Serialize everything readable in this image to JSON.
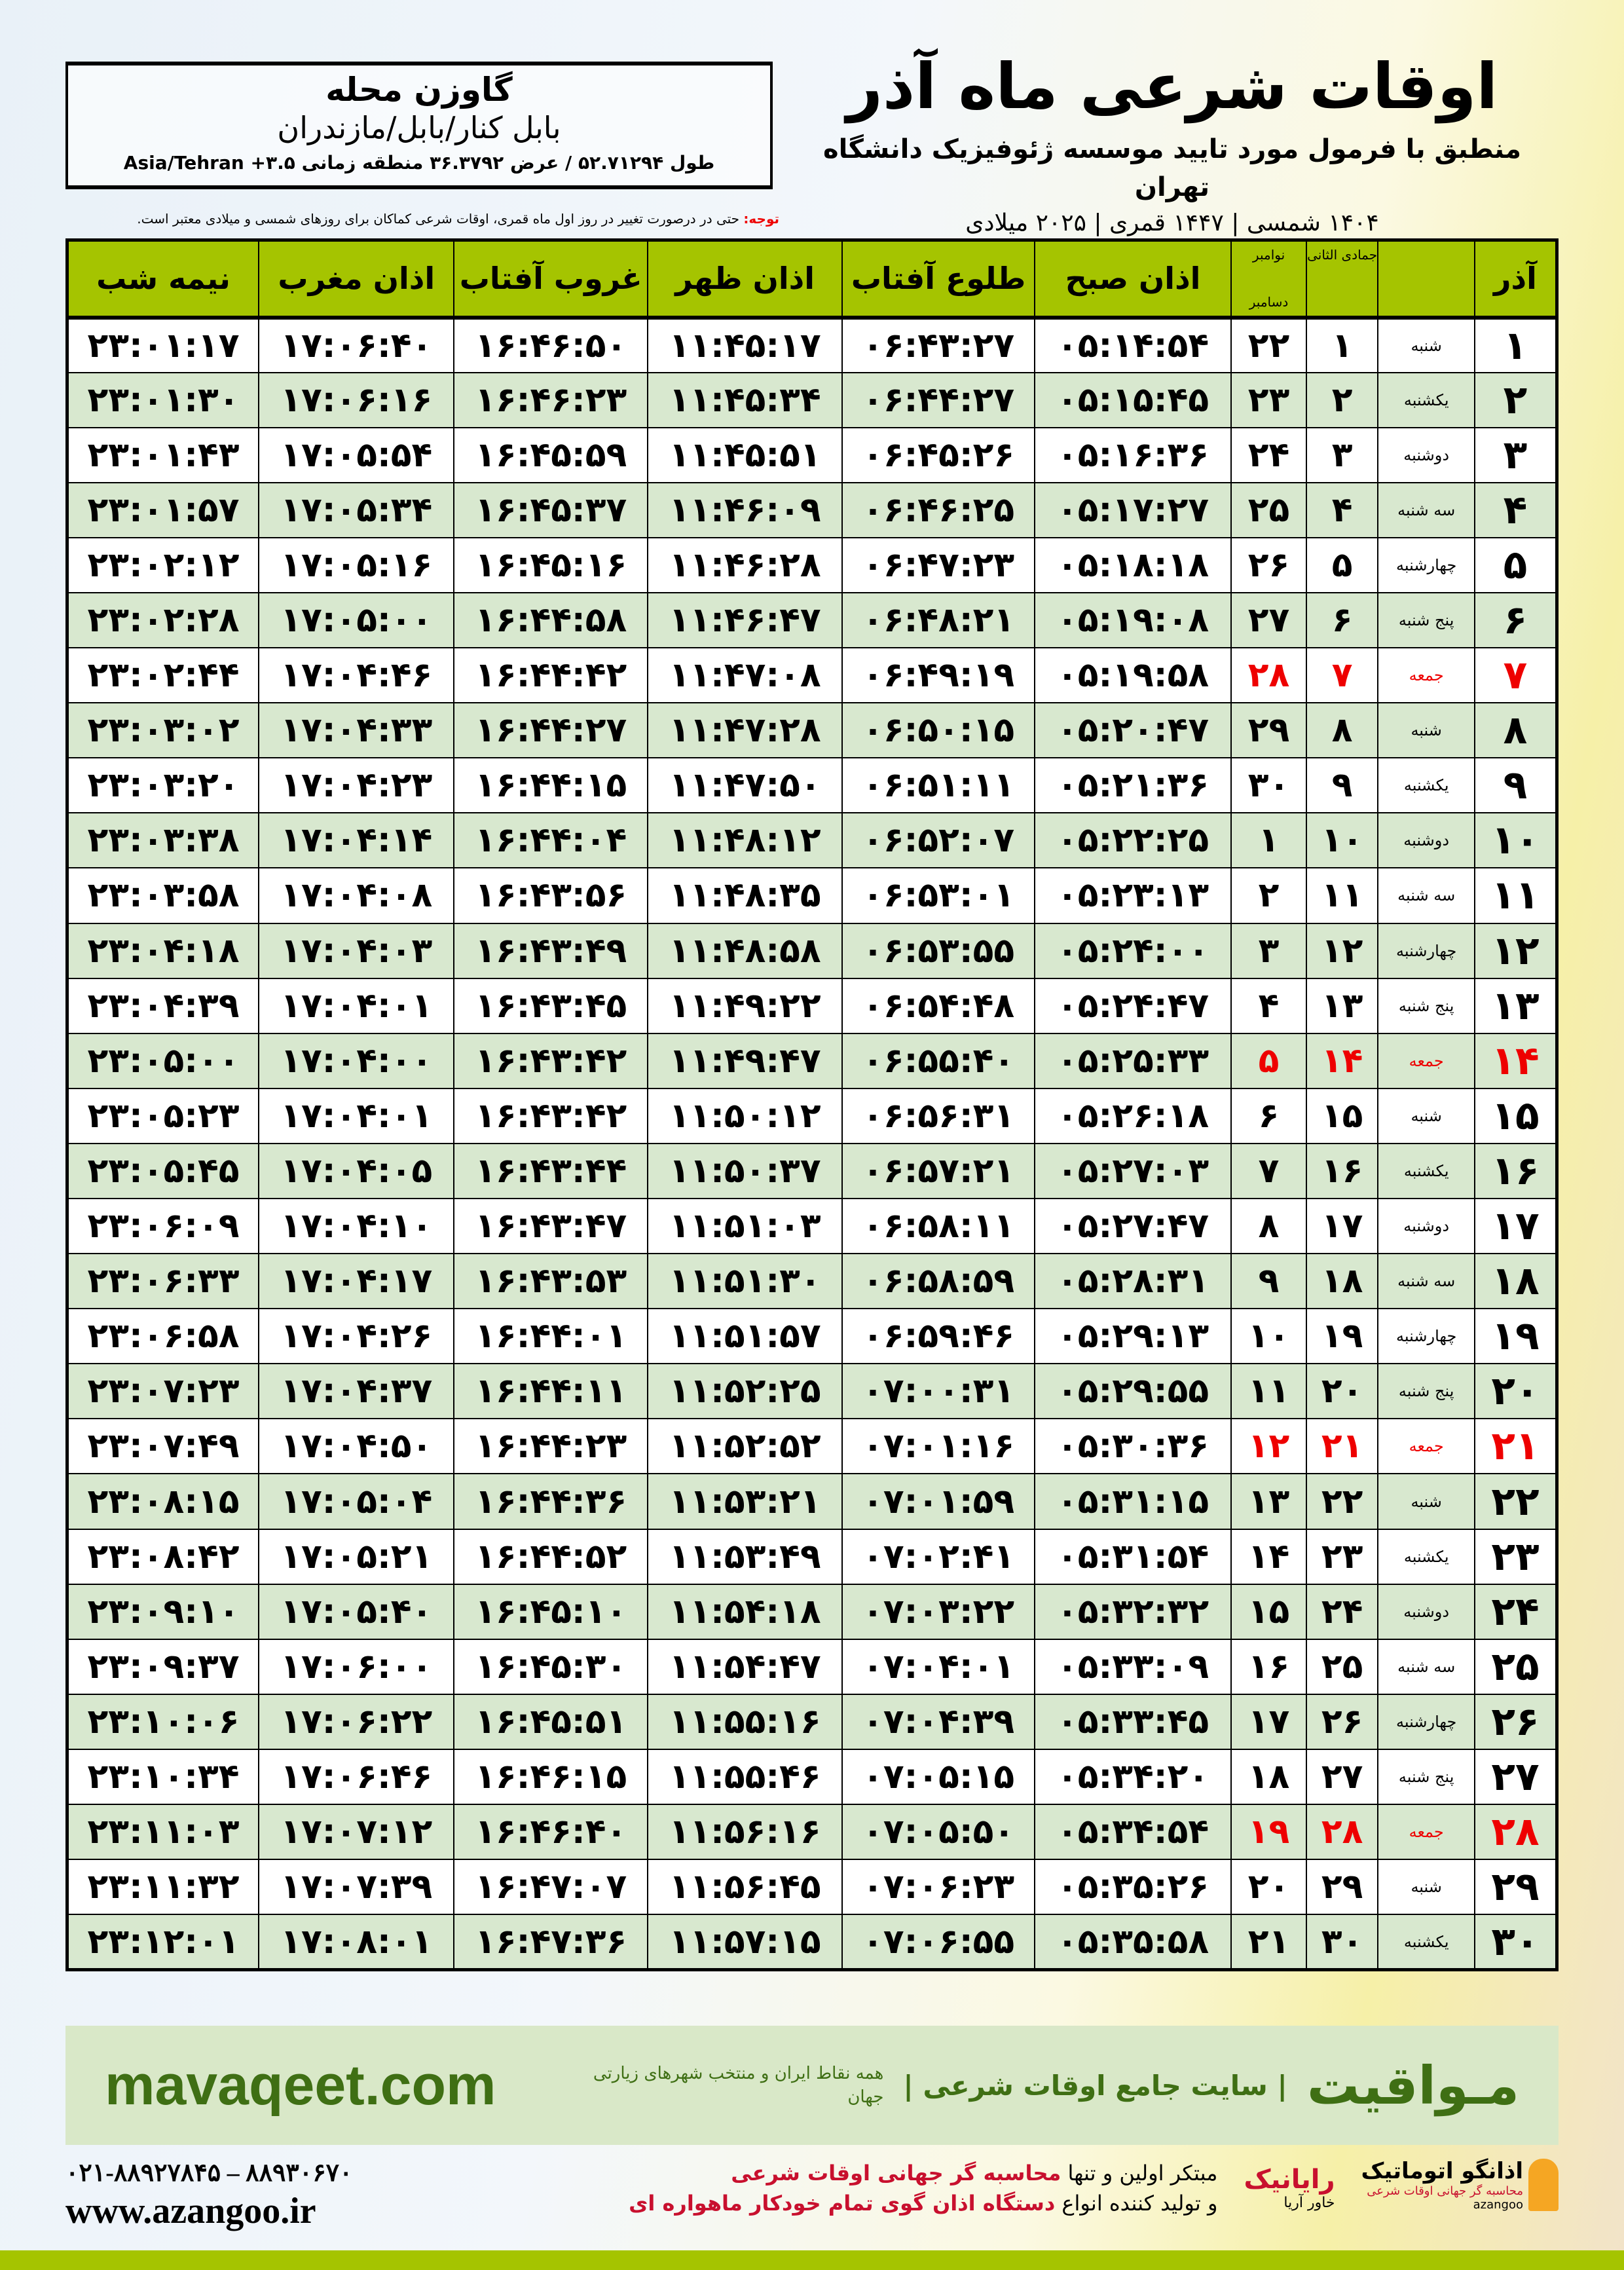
{
  "header": {
    "title": "اوقات شرعی ماه آذر",
    "subtitle": "منطبق با فرمول مورد تایید موسسه ژئوفیزیک دانشگاه تهران",
    "years": "۱۴۰۴ شمسی | ۱۴۴۷ قمری | ۲۰۲۵ میلادی"
  },
  "location": {
    "name": "گاوزن محله",
    "region": "بابل کنار/بابل/مازندران",
    "coords": "طول ۵۲.۷۱۲۹۴ / عرض ۳۶.۳۷۹۲ منطقه زمانی ۳.۵+ Asia/Tehran"
  },
  "note": {
    "label": "توجه:",
    "text": " حتی در درصورت تغییر در روز اول ماه قمری، اوقات شرعی کماکان برای روزهای شمسی و میلادی معتبر است."
  },
  "table": {
    "headers": {
      "azar": "آذر",
      "jumada": "جمادی الثانی",
      "nov": "نوامبر",
      "dec": "دسامبر",
      "sobh": "اذان صبح",
      "tolu": "طلوع آفتاب",
      "zohr": "اذان ظهر",
      "ghorub": "غروب آفتاب",
      "maghreb": "اذان مغرب",
      "nimeh": "نیمه شب"
    },
    "highlight_color": "#e00000",
    "rows": [
      [
        "۱",
        "شنبه",
        "۱",
        "۲۲",
        "۰۵:۱۴:۵۴",
        "۰۶:۴۳:۲۷",
        "۱۱:۴۵:۱۷",
        "۱۶:۴۶:۵۰",
        "۱۷:۰۶:۴۰",
        "۲۳:۰۱:۱۷"
      ],
      [
        "۲",
        "یکشنبه",
        "۲",
        "۲۳",
        "۰۵:۱۵:۴۵",
        "۰۶:۴۴:۲۷",
        "۱۱:۴۵:۳۴",
        "۱۶:۴۶:۲۳",
        "۱۷:۰۶:۱۶",
        "۲۳:۰۱:۳۰"
      ],
      [
        "۳",
        "دوشنبه",
        "۳",
        "۲۴",
        "۰۵:۱۶:۳۶",
        "۰۶:۴۵:۲۶",
        "۱۱:۴۵:۵۱",
        "۱۶:۴۵:۵۹",
        "۱۷:۰۵:۵۴",
        "۲۳:۰۱:۴۳"
      ],
      [
        "۴",
        "سه شنبه",
        "۴",
        "۲۵",
        "۰۵:۱۷:۲۷",
        "۰۶:۴۶:۲۵",
        "۱۱:۴۶:۰۹",
        "۱۶:۴۵:۳۷",
        "۱۷:۰۵:۳۴",
        "۲۳:۰۱:۵۷"
      ],
      [
        "۵",
        "چهارشنبه",
        "۵",
        "۲۶",
        "۰۵:۱۸:۱۸",
        "۰۶:۴۷:۲۳",
        "۱۱:۴۶:۲۸",
        "۱۶:۴۵:۱۶",
        "۱۷:۰۵:۱۶",
        "۲۳:۰۲:۱۲"
      ],
      [
        "۶",
        "پنج شنبه",
        "۶",
        "۲۷",
        "۰۵:۱۹:۰۸",
        "۰۶:۴۸:۲۱",
        "۱۱:۴۶:۴۷",
        "۱۶:۴۴:۵۸",
        "۱۷:۰۵:۰۰",
        "۲۳:۰۲:۲۸"
      ],
      [
        "۷",
        "جمعه",
        "۷",
        "۲۸",
        "۰۵:۱۹:۵۸",
        "۰۶:۴۹:۱۹",
        "۱۱:۴۷:۰۸",
        "۱۶:۴۴:۴۲",
        "۱۷:۰۴:۴۶",
        "۲۳:۰۲:۴۴"
      ],
      [
        "۸",
        "شنبه",
        "۸",
        "۲۹",
        "۰۵:۲۰:۴۷",
        "۰۶:۵۰:۱۵",
        "۱۱:۴۷:۲۸",
        "۱۶:۴۴:۲۷",
        "۱۷:۰۴:۳۳",
        "۲۳:۰۳:۰۲"
      ],
      [
        "۹",
        "یکشنبه",
        "۹",
        "۳۰",
        "۰۵:۲۱:۳۶",
        "۰۶:۵۱:۱۱",
        "۱۱:۴۷:۵۰",
        "۱۶:۴۴:۱۵",
        "۱۷:۰۴:۲۳",
        "۲۳:۰۳:۲۰"
      ],
      [
        "۱۰",
        "دوشنبه",
        "۱۰",
        "۱",
        "۰۵:۲۲:۲۵",
        "۰۶:۵۲:۰۷",
        "۱۱:۴۸:۱۲",
        "۱۶:۴۴:۰۴",
        "۱۷:۰۴:۱۴",
        "۲۳:۰۳:۳۸"
      ],
      [
        "۱۱",
        "سه شنبه",
        "۱۱",
        "۲",
        "۰۵:۲۳:۱۳",
        "۰۶:۵۳:۰۱",
        "۱۱:۴۸:۳۵",
        "۱۶:۴۳:۵۶",
        "۱۷:۰۴:۰۸",
        "۲۳:۰۳:۵۸"
      ],
      [
        "۱۲",
        "چهارشنبه",
        "۱۲",
        "۳",
        "۰۵:۲۴:۰۰",
        "۰۶:۵۳:۵۵",
        "۱۱:۴۸:۵۸",
        "۱۶:۴۳:۴۹",
        "۱۷:۰۴:۰۳",
        "۲۳:۰۴:۱۸"
      ],
      [
        "۱۳",
        "پنج شنبه",
        "۱۳",
        "۴",
        "۰۵:۲۴:۴۷",
        "۰۶:۵۴:۴۸",
        "۱۱:۴۹:۲۲",
        "۱۶:۴۳:۴۵",
        "۱۷:۰۴:۰۱",
        "۲۳:۰۴:۳۹"
      ],
      [
        "۱۴",
        "جمعه",
        "۱۴",
        "۵",
        "۰۵:۲۵:۳۳",
        "۰۶:۵۵:۴۰",
        "۱۱:۴۹:۴۷",
        "۱۶:۴۳:۴۲",
        "۱۷:۰۴:۰۰",
        "۲۳:۰۵:۰۰"
      ],
      [
        "۱۵",
        "شنبه",
        "۱۵",
        "۶",
        "۰۵:۲۶:۱۸",
        "۰۶:۵۶:۳۱",
        "۱۱:۵۰:۱۲",
        "۱۶:۴۳:۴۲",
        "۱۷:۰۴:۰۱",
        "۲۳:۰۵:۲۳"
      ],
      [
        "۱۶",
        "یکشنبه",
        "۱۶",
        "۷",
        "۰۵:۲۷:۰۳",
        "۰۶:۵۷:۲۱",
        "۱۱:۵۰:۳۷",
        "۱۶:۴۳:۴۴",
        "۱۷:۰۴:۰۵",
        "۲۳:۰۵:۴۵"
      ],
      [
        "۱۷",
        "دوشنبه",
        "۱۷",
        "۸",
        "۰۵:۲۷:۴۷",
        "۰۶:۵۸:۱۱",
        "۱۱:۵۱:۰۳",
        "۱۶:۴۳:۴۷",
        "۱۷:۰۴:۱۰",
        "۲۳:۰۶:۰۹"
      ],
      [
        "۱۸",
        "سه شنبه",
        "۱۸",
        "۹",
        "۰۵:۲۸:۳۱",
        "۰۶:۵۸:۵۹",
        "۱۱:۵۱:۳۰",
        "۱۶:۴۳:۵۳",
        "۱۷:۰۴:۱۷",
        "۲۳:۰۶:۳۳"
      ],
      [
        "۱۹",
        "چهارشنبه",
        "۱۹",
        "۱۰",
        "۰۵:۲۹:۱۳",
        "۰۶:۵۹:۴۶",
        "۱۱:۵۱:۵۷",
        "۱۶:۴۴:۰۱",
        "۱۷:۰۴:۲۶",
        "۲۳:۰۶:۵۸"
      ],
      [
        "۲۰",
        "پنج شنبه",
        "۲۰",
        "۱۱",
        "۰۵:۲۹:۵۵",
        "۰۷:۰۰:۳۱",
        "۱۱:۵۲:۲۵",
        "۱۶:۴۴:۱۱",
        "۱۷:۰۴:۳۷",
        "۲۳:۰۷:۲۳"
      ],
      [
        "۲۱",
        "جمعه",
        "۲۱",
        "۱۲",
        "۰۵:۳۰:۳۶",
        "۰۷:۰۱:۱۶",
        "۱۱:۵۲:۵۲",
        "۱۶:۴۴:۲۳",
        "۱۷:۰۴:۵۰",
        "۲۳:۰۷:۴۹"
      ],
      [
        "۲۲",
        "شنبه",
        "۲۲",
        "۱۳",
        "۰۵:۳۱:۱۵",
        "۰۷:۰۱:۵۹",
        "۱۱:۵۳:۲۱",
        "۱۶:۴۴:۳۶",
        "۱۷:۰۵:۰۴",
        "۲۳:۰۸:۱۵"
      ],
      [
        "۲۳",
        "یکشنبه",
        "۲۳",
        "۱۴",
        "۰۵:۳۱:۵۴",
        "۰۷:۰۲:۴۱",
        "۱۱:۵۳:۴۹",
        "۱۶:۴۴:۵۲",
        "۱۷:۰۵:۲۱",
        "۲۳:۰۸:۴۲"
      ],
      [
        "۲۴",
        "دوشنبه",
        "۲۴",
        "۱۵",
        "۰۵:۳۲:۳۲",
        "۰۷:۰۳:۲۲",
        "۱۱:۵۴:۱۸",
        "۱۶:۴۵:۱۰",
        "۱۷:۰۵:۴۰",
        "۲۳:۰۹:۱۰"
      ],
      [
        "۲۵",
        "سه شنبه",
        "۲۵",
        "۱۶",
        "۰۵:۳۳:۰۹",
        "۰۷:۰۴:۰۱",
        "۱۱:۵۴:۴۷",
        "۱۶:۴۵:۳۰",
        "۱۷:۰۶:۰۰",
        "۲۳:۰۹:۳۷"
      ],
      [
        "۲۶",
        "چهارشنبه",
        "۲۶",
        "۱۷",
        "۰۵:۳۳:۴۵",
        "۰۷:۰۴:۳۹",
        "۱۱:۵۵:۱۶",
        "۱۶:۴۵:۵۱",
        "۱۷:۰۶:۲۲",
        "۲۳:۱۰:۰۶"
      ],
      [
        "۲۷",
        "پنج شنبه",
        "۲۷",
        "۱۸",
        "۰۵:۳۴:۲۰",
        "۰۷:۰۵:۱۵",
        "۱۱:۵۵:۴۶",
        "۱۶:۴۶:۱۵",
        "۱۷:۰۶:۴۶",
        "۲۳:۱۰:۳۴"
      ],
      [
        "۲۸",
        "جمعه",
        "۲۸",
        "۱۹",
        "۰۵:۳۴:۵۴",
        "۰۷:۰۵:۵۰",
        "۱۱:۵۶:۱۶",
        "۱۶:۴۶:۴۰",
        "۱۷:۰۷:۱۲",
        "۲۳:۱۱:۰۳"
      ],
      [
        "۲۹",
        "شنبه",
        "۲۹",
        "۲۰",
        "۰۵:۳۵:۲۶",
        "۰۷:۰۶:۲۳",
        "۱۱:۵۶:۴۵",
        "۱۶:۴۷:۰۷",
        "۱۷:۰۷:۳۹",
        "۲۳:۱۱:۳۲"
      ],
      [
        "۳۰",
        "یکشنبه",
        "۳۰",
        "۲۱",
        "۰۵:۳۵:۵۸",
        "۰۷:۰۶:۵۵",
        "۱۱:۵۷:۱۵",
        "۱۶:۴۷:۳۶",
        "۱۷:۰۸:۰۱",
        "۲۳:۱۲:۰۱"
      ]
    ]
  },
  "banner": {
    "brand": "مـواقیت",
    "tagline": "| سایت جامع اوقات شرعی |",
    "tagline2": "همه نقاط ایران و منتخب شهرهای زیارتی جهان",
    "url": "mavaqeet.com"
  },
  "footer": {
    "phones": "۰۲۱-۸۸۹۲۷۸۴۵ – ۸۸۹۳۰۶۷۰",
    "website": "www.azangoo.ir",
    "promo_1a": "مبتکر اولین و تنها ",
    "promo_1b": "محاسبه گر جهانی اوقات شرعی",
    "promo_2a": "و تولید کننده انواع ",
    "promo_2b": "دستگاه اذان گوی تمام خودکار ماهواره ای",
    "logo_rayanik": "رایانیک",
    "logo_rayanik_sub": "خاور آریا",
    "logo_azangoo": "اذانگو اتوماتیک",
    "logo_azangoo_sub": "محاسبه گر جهانی اوقات شرعی",
    "logo_azangoo_en": "azangoo"
  }
}
